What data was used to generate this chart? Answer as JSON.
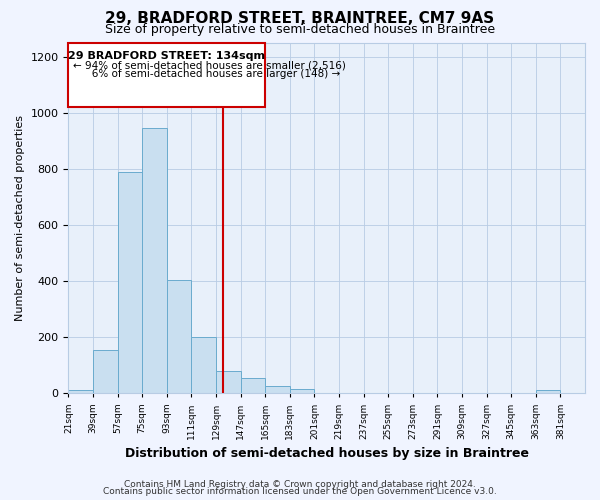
{
  "title1": "29, BRADFORD STREET, BRAINTREE, CM7 9AS",
  "title2": "Size of property relative to semi-detached houses in Braintree",
  "xlabel": "Distribution of semi-detached houses by size in Braintree",
  "ylabel": "Number of semi-detached properties",
  "bin_edges": [
    21,
    39,
    57,
    75,
    93,
    111,
    129,
    147,
    165,
    183,
    201,
    219,
    237,
    255,
    273,
    291,
    309,
    327,
    345,
    363,
    381,
    399
  ],
  "bar_heights": [
    10,
    155,
    790,
    945,
    405,
    200,
    80,
    55,
    25,
    15,
    0,
    0,
    0,
    0,
    0,
    0,
    0,
    0,
    0,
    10,
    0
  ],
  "bar_color": "#c9dff0",
  "bar_edge_color": "#6aabce",
  "property_size": 134,
  "vline_color": "#cc0000",
  "annotation_box_color": "#cc0000",
  "annotation_text1": "29 BRADFORD STREET: 134sqm",
  "annotation_text2": "← 94% of semi-detached houses are smaller (2,516)",
  "annotation_text3": "   6% of semi-detached houses are larger (148) →",
  "ylim": [
    0,
    1250
  ],
  "yticks": [
    0,
    200,
    400,
    600,
    800,
    1000,
    1200
  ],
  "footer1": "Contains HM Land Registry data © Crown copyright and database right 2024.",
  "footer2": "Contains public sector information licensed under the Open Government Licence v3.0.",
  "background_color": "#f0f4ff",
  "plot_background": "#e8f0fa",
  "grid_color": "#b8cce4",
  "title1_fontsize": 11,
  "title2_fontsize": 9,
  "xlabel_fontsize": 9,
  "ylabel_fontsize": 8
}
